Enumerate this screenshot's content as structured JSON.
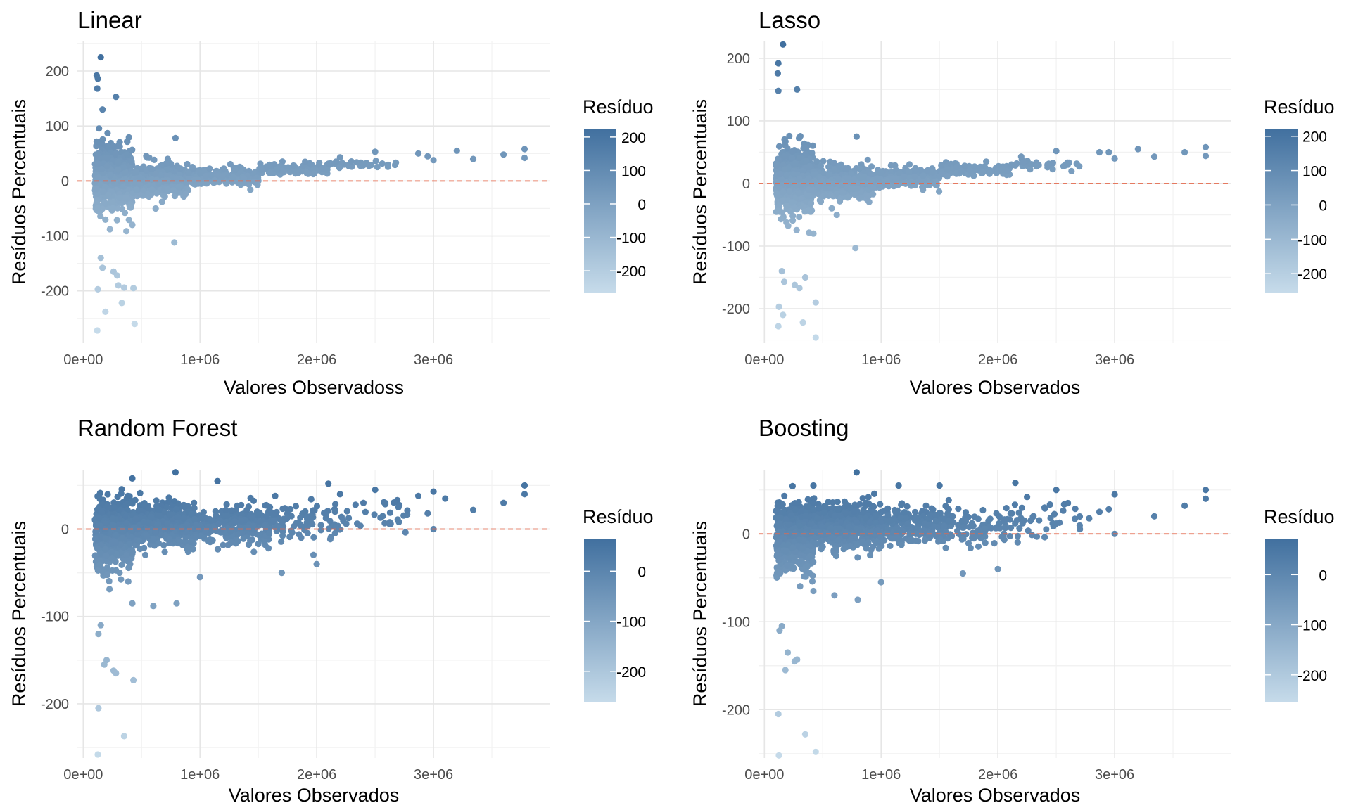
{
  "colors": {
    "low": "#c6dbea",
    "high": "#41709f",
    "reference_line": "#e4694d",
    "grid_major": "#e6e6e6",
    "grid_minor": "#f2f2f2"
  },
  "chart_data": [
    {
      "type": "scatter",
      "title": "Linear",
      "xlabel": "Valores Observadoss",
      "ylabel": "Resíduos Percentuais",
      "xlim": [
        -50000,
        4000000
      ],
      "ylim": [
        -295,
        255
      ],
      "x_ticks": [
        0,
        1000000,
        2000000,
        3000000
      ],
      "x_tick_labels": [
        "0e+00",
        "1e+06",
        "2e+06",
        "3e+06"
      ],
      "y_ticks": [
        -200,
        -100,
        0,
        100,
        200
      ],
      "y_tick_labels": [
        "-200",
        "-100",
        "0",
        "100",
        "200"
      ],
      "reference_line_y": 0,
      "legend": {
        "title": "Resíduo",
        "position": "right",
        "range": [
          -265,
          225
        ],
        "ticks": [
          -200,
          -100,
          0,
          100,
          200
        ],
        "tick_labels": [
          "-200",
          "-100",
          "0",
          "100",
          "200"
        ]
      },
      "grid": true,
      "points": [
        [
          150000,
          225
        ],
        [
          115000,
          192
        ],
        [
          125000,
          186
        ],
        [
          120000,
          168
        ],
        [
          280000,
          153
        ],
        [
          165000,
          130
        ],
        [
          790000,
          78
        ],
        [
          2500000,
          53
        ],
        [
          2870000,
          50
        ],
        [
          3200000,
          55
        ],
        [
          3780000,
          58
        ],
        [
          3780000,
          42
        ],
        [
          3600000,
          48
        ],
        [
          3340000,
          40
        ],
        [
          3000000,
          38
        ],
        [
          2950000,
          45
        ],
        [
          2200000,
          43
        ],
        [
          1900000,
          35
        ],
        [
          1800000,
          28
        ],
        [
          620000,
          -50
        ],
        [
          780000,
          -112
        ],
        [
          420000,
          -80
        ],
        [
          150000,
          -140
        ],
        [
          165000,
          -158
        ],
        [
          260000,
          -165
        ],
        [
          290000,
          -172
        ],
        [
          300000,
          -190
        ],
        [
          350000,
          -194
        ],
        [
          430000,
          -195
        ],
        [
          125000,
          -197
        ],
        [
          330000,
          -222
        ],
        [
          190000,
          -238
        ],
        [
          440000,
          -260
        ],
        [
          120000,
          -272
        ]
      ],
      "clusters": [
        {
          "x_range": [
            100000,
            420000
          ],
          "y_center": 5,
          "y_spread": 50,
          "n": 620
        },
        {
          "x_range": [
            420000,
            900000
          ],
          "y_center": 2,
          "y_spread": 25,
          "n": 420
        },
        {
          "x_range": [
            900000,
            1500000
          ],
          "y_center": 8,
          "y_spread": 14,
          "n": 240
        },
        {
          "x_range": [
            1500000,
            2100000
          ],
          "y_center": 22,
          "y_spread": 9,
          "n": 110
        },
        {
          "x_range": [
            2100000,
            2700000
          ],
          "y_center": 30,
          "y_spread": 8,
          "n": 30
        }
      ]
    },
    {
      "type": "scatter",
      "title": "Lasso",
      "xlabel": "Valores Observados",
      "ylabel": "Resíduos Percentuais",
      "xlim": [
        -50000,
        4000000
      ],
      "ylim": [
        -255,
        228
      ],
      "x_ticks": [
        0,
        1000000,
        2000000,
        3000000
      ],
      "x_tick_labels": [
        "0e+00",
        "1e+06",
        "2e+06",
        "3e+06"
      ],
      "y_ticks": [
        -200,
        -100,
        0,
        100,
        200
      ],
      "y_tick_labels": [
        "-200",
        "-100",
        "0",
        "100",
        "200"
      ],
      "reference_line_y": 0,
      "legend": {
        "title": "Resíduo",
        "position": "right",
        "range": [
          -255,
          222
        ],
        "ticks": [
          -200,
          -100,
          0,
          100,
          200
        ],
        "tick_labels": [
          "-200",
          "-100",
          "0",
          "100",
          "200"
        ]
      },
      "grid": true,
      "points": [
        [
          160000,
          222
        ],
        [
          120000,
          192
        ],
        [
          115000,
          176
        ],
        [
          280000,
          150
        ],
        [
          120000,
          148
        ],
        [
          790000,
          75
        ],
        [
          2500000,
          52
        ],
        [
          2870000,
          50
        ],
        [
          3200000,
          55
        ],
        [
          3780000,
          58
        ],
        [
          3780000,
          44
        ],
        [
          3600000,
          50
        ],
        [
          3340000,
          43
        ],
        [
          3000000,
          40
        ],
        [
          2950000,
          50
        ],
        [
          2200000,
          43
        ],
        [
          1900000,
          35
        ],
        [
          1800000,
          27
        ],
        [
          620000,
          -50
        ],
        [
          780000,
          -103
        ],
        [
          420000,
          -80
        ],
        [
          150000,
          -140
        ],
        [
          170000,
          -157
        ],
        [
          260000,
          -162
        ],
        [
          300000,
          -167
        ],
        [
          350000,
          -150
        ],
        [
          440000,
          -190
        ],
        [
          125000,
          -197
        ],
        [
          160000,
          -210
        ],
        [
          330000,
          -222
        ],
        [
          120000,
          -228
        ],
        [
          440000,
          -246
        ]
      ],
      "clusters": [
        {
          "x_range": [
            100000,
            420000
          ],
          "y_center": 5,
          "y_spread": 48,
          "n": 620
        },
        {
          "x_range": [
            420000,
            900000
          ],
          "y_center": 2,
          "y_spread": 24,
          "n": 420
        },
        {
          "x_range": [
            900000,
            1500000
          ],
          "y_center": 8,
          "y_spread": 14,
          "n": 240
        },
        {
          "x_range": [
            1500000,
            2100000
          ],
          "y_center": 22,
          "y_spread": 9,
          "n": 110
        },
        {
          "x_range": [
            2100000,
            2700000
          ],
          "y_center": 30,
          "y_spread": 8,
          "n": 30
        }
      ]
    },
    {
      "type": "scatter",
      "title": "Random Forest",
      "xlabel": "Valores Observados",
      "ylabel": "Resíduos Percentuais",
      "xlim": [
        -50000,
        4000000
      ],
      "ylim": [
        -262,
        68
      ],
      "x_ticks": [
        0,
        1000000,
        2000000,
        3000000
      ],
      "x_tick_labels": [
        "0e+00",
        "1e+06",
        "2e+06",
        "3e+06"
      ],
      "y_ticks": [
        -200,
        -100,
        0
      ],
      "y_tick_labels": [
        "-200",
        "-100",
        "0"
      ],
      "reference_line_y": 0,
      "legend": {
        "title": "Resíduo",
        "position": "right",
        "range": [
          -262,
          65
        ],
        "ticks": [
          -200,
          -100,
          0
        ],
        "tick_labels": [
          "-200",
          "-100",
          "0"
        ]
      },
      "grid": true,
      "points": [
        [
          790000,
          65
        ],
        [
          420000,
          58
        ],
        [
          1150000,
          55
        ],
        [
          2100000,
          52
        ],
        [
          3780000,
          50
        ],
        [
          3780000,
          40
        ],
        [
          3600000,
          30
        ],
        [
          3340000,
          22
        ],
        [
          3000000,
          43
        ],
        [
          3100000,
          35
        ],
        [
          2870000,
          38
        ],
        [
          2500000,
          45
        ],
        [
          2700000,
          25
        ],
        [
          2950000,
          18
        ],
        [
          3000000,
          0
        ],
        [
          2200000,
          40
        ],
        [
          2400000,
          30
        ],
        [
          1700000,
          -50
        ],
        [
          2000000,
          -40
        ],
        [
          1000000,
          -55
        ],
        [
          800000,
          -85
        ],
        [
          600000,
          -88
        ],
        [
          420000,
          -85
        ],
        [
          150000,
          -110
        ],
        [
          130000,
          -120
        ],
        [
          200000,
          -150
        ],
        [
          180000,
          -155
        ],
        [
          260000,
          -162
        ],
        [
          280000,
          -165
        ],
        [
          430000,
          -173
        ],
        [
          130000,
          -205
        ],
        [
          350000,
          -237
        ],
        [
          125000,
          -258
        ]
      ],
      "clusters": [
        {
          "x_range": [
            100000,
            420000
          ],
          "y_center": -5,
          "y_spread": 35,
          "n": 560
        },
        {
          "x_range": [
            420000,
            950000
          ],
          "y_center": 5,
          "y_spread": 22,
          "n": 520
        },
        {
          "x_range": [
            950000,
            1600000
          ],
          "y_center": 5,
          "y_spread": 20,
          "n": 280
        },
        {
          "x_range": [
            1600000,
            2200000
          ],
          "y_center": 10,
          "y_spread": 20,
          "n": 90
        },
        {
          "x_range": [
            2200000,
            2800000
          ],
          "y_center": 15,
          "y_spread": 18,
          "n": 30
        }
      ]
    },
    {
      "type": "scatter",
      "title": "Boosting",
      "xlabel": "Valores Observados",
      "ylabel": "Resíduos Percentuais",
      "xlim": [
        -50000,
        4000000
      ],
      "ylim": [
        -255,
        73
      ],
      "x_ticks": [
        0,
        1000000,
        2000000,
        3000000
      ],
      "x_tick_labels": [
        "0e+00",
        "1e+06",
        "2e+06",
        "3e+06"
      ],
      "y_ticks": [
        -200,
        -100,
        0
      ],
      "y_tick_labels": [
        "-200",
        "-100",
        "0"
      ],
      "reference_line_y": 0,
      "legend": {
        "title": "Resíduo",
        "position": "right",
        "range": [
          -255,
          72
        ],
        "ticks": [
          -200,
          -100,
          0
        ],
        "tick_labels": [
          "-200",
          "-100",
          "0"
        ]
      },
      "grid": true,
      "points": [
        [
          790000,
          70
        ],
        [
          420000,
          55
        ],
        [
          1150000,
          55
        ],
        [
          1500000,
          55
        ],
        [
          2150000,
          58
        ],
        [
          3780000,
          50
        ],
        [
          3780000,
          40
        ],
        [
          3600000,
          32
        ],
        [
          3340000,
          20
        ],
        [
          3000000,
          45
        ],
        [
          2870000,
          25
        ],
        [
          2500000,
          50
        ],
        [
          2600000,
          35
        ],
        [
          2950000,
          28
        ],
        [
          3000000,
          0
        ],
        [
          2250000,
          42
        ],
        [
          2400000,
          30
        ],
        [
          1700000,
          -45
        ],
        [
          2000000,
          -40
        ],
        [
          1000000,
          -55
        ],
        [
          800000,
          -75
        ],
        [
          600000,
          -70
        ],
        [
          420000,
          -65
        ],
        [
          150000,
          -105
        ],
        [
          130000,
          -110
        ],
        [
          200000,
          -135
        ],
        [
          180000,
          -155
        ],
        [
          260000,
          -145
        ],
        [
          280000,
          -143
        ],
        [
          120000,
          -205
        ],
        [
          350000,
          -228
        ],
        [
          440000,
          -248
        ],
        [
          125000,
          -252
        ]
      ],
      "clusters": [
        {
          "x_range": [
            100000,
            420000
          ],
          "y_center": -5,
          "y_spread": 33,
          "n": 560
        },
        {
          "x_range": [
            420000,
            950000
          ],
          "y_center": 8,
          "y_spread": 22,
          "n": 520
        },
        {
          "x_range": [
            950000,
            1600000
          ],
          "y_center": 8,
          "y_spread": 20,
          "n": 280
        },
        {
          "x_range": [
            1600000,
            2200000
          ],
          "y_center": 8,
          "y_spread": 20,
          "n": 90
        },
        {
          "x_range": [
            2200000,
            2800000
          ],
          "y_center": 15,
          "y_spread": 18,
          "n": 30
        }
      ]
    }
  ]
}
